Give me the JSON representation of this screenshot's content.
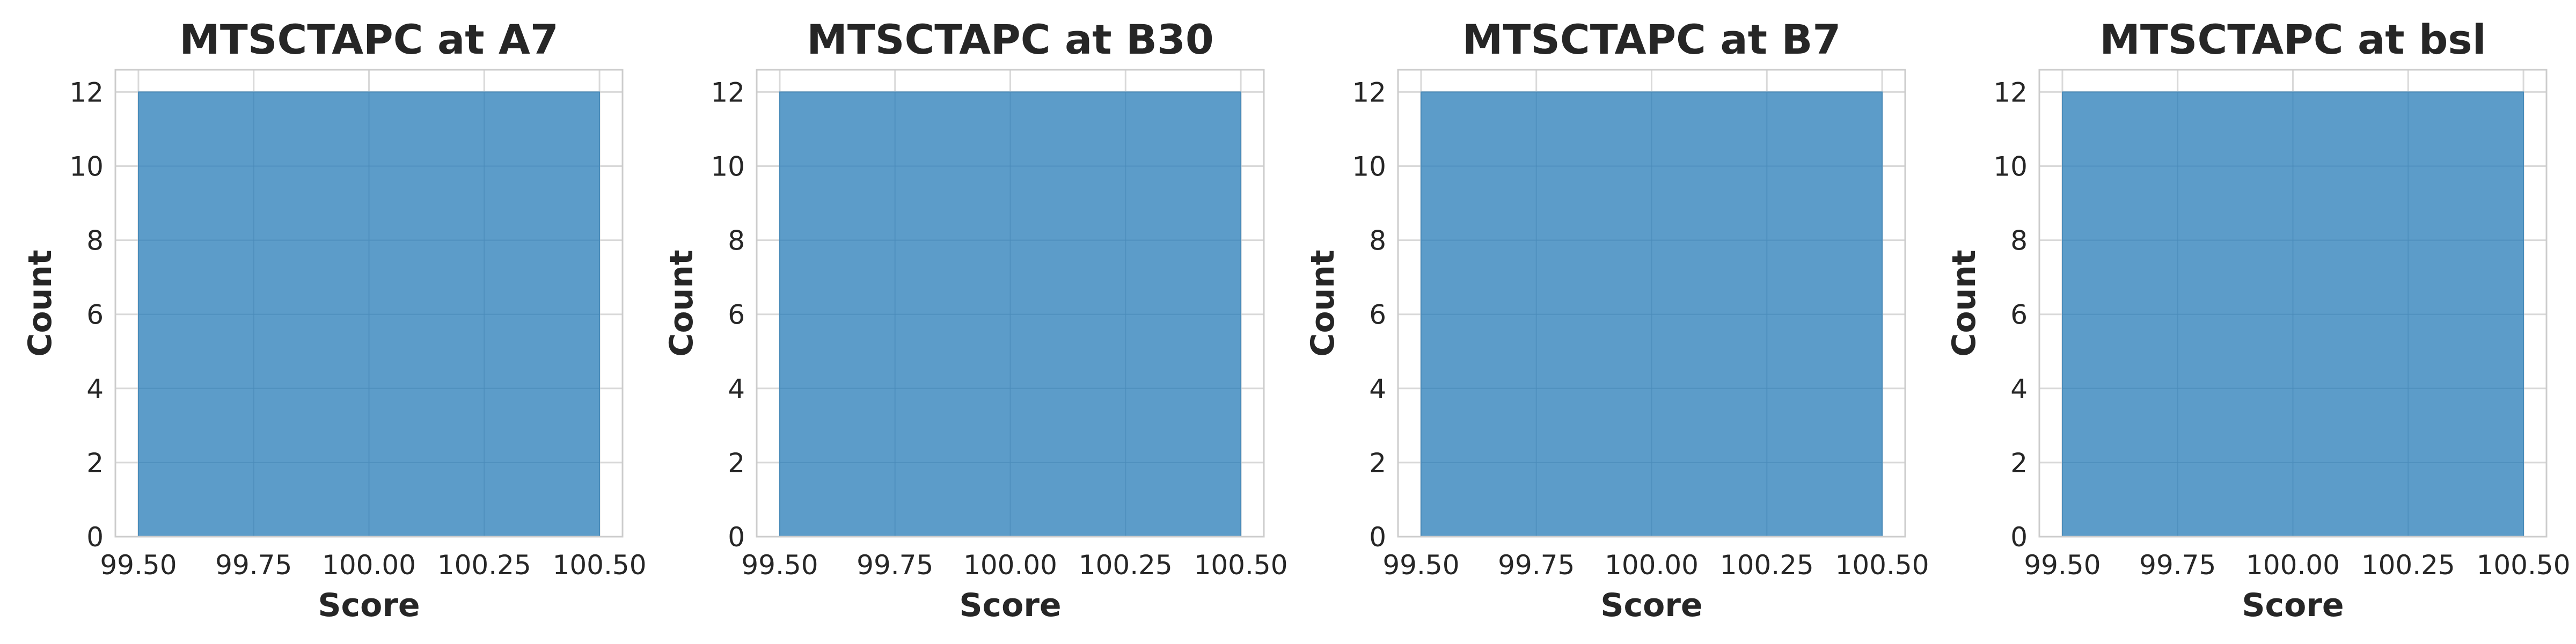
{
  "chart_data": [
    {
      "type": "bar",
      "title": "MTSCTAPC at A7",
      "xlabel": "Score",
      "ylabel": "Count",
      "bins": [
        {
          "x0": 99.5,
          "x1": 100.5,
          "count": 12
        }
      ],
      "xlim": [
        99.45,
        100.55
      ],
      "ylim": [
        0,
        12.6
      ],
      "xticks": [
        99.5,
        99.75,
        100.0,
        100.25,
        100.5
      ],
      "xtick_labels": [
        "99.50",
        "99.75",
        "100.00",
        "100.25",
        "100.50"
      ],
      "yticks": [
        0,
        2,
        4,
        6,
        8,
        10,
        12
      ],
      "ytick_labels": [
        "0",
        "2",
        "4",
        "6",
        "8",
        "10",
        "12"
      ],
      "grid": true
    },
    {
      "type": "bar",
      "title": "MTSCTAPC at B30",
      "xlabel": "Score",
      "ylabel": "Count",
      "bins": [
        {
          "x0": 99.5,
          "x1": 100.5,
          "count": 12
        }
      ],
      "xlim": [
        99.45,
        100.55
      ],
      "ylim": [
        0,
        12.6
      ],
      "xticks": [
        99.5,
        99.75,
        100.0,
        100.25,
        100.5
      ],
      "xtick_labels": [
        "99.50",
        "99.75",
        "100.00",
        "100.25",
        "100.50"
      ],
      "yticks": [
        0,
        2,
        4,
        6,
        8,
        10,
        12
      ],
      "ytick_labels": [
        "0",
        "2",
        "4",
        "6",
        "8",
        "10",
        "12"
      ],
      "grid": true
    },
    {
      "type": "bar",
      "title": "MTSCTAPC at B7",
      "xlabel": "Score",
      "ylabel": "Count",
      "bins": [
        {
          "x0": 99.5,
          "x1": 100.5,
          "count": 12
        }
      ],
      "xlim": [
        99.45,
        100.55
      ],
      "ylim": [
        0,
        12.6
      ],
      "xticks": [
        99.5,
        99.75,
        100.0,
        100.25,
        100.5
      ],
      "xtick_labels": [
        "99.50",
        "99.75",
        "100.00",
        "100.25",
        "100.50"
      ],
      "yticks": [
        0,
        2,
        4,
        6,
        8,
        10,
        12
      ],
      "ytick_labels": [
        "0",
        "2",
        "4",
        "6",
        "8",
        "10",
        "12"
      ],
      "grid": true
    },
    {
      "type": "bar",
      "title": "MTSCTAPC at bsl",
      "xlabel": "Score",
      "ylabel": "Count",
      "bins": [
        {
          "x0": 99.5,
          "x1": 100.5,
          "count": 12
        }
      ],
      "xlim": [
        99.45,
        100.55
      ],
      "ylim": [
        0,
        12.6
      ],
      "xticks": [
        99.5,
        99.75,
        100.0,
        100.25,
        100.5
      ],
      "xtick_labels": [
        "99.50",
        "99.75",
        "100.00",
        "100.25",
        "100.50"
      ],
      "yticks": [
        0,
        2,
        4,
        6,
        8,
        10,
        12
      ],
      "ytick_labels": [
        "0",
        "2",
        "4",
        "6",
        "8",
        "10",
        "12"
      ],
      "grid": true
    }
  ],
  "colors": {
    "bar_fill": "#5799c7",
    "bar_edge": "#4a8bb9",
    "grid": "#d9d9d9",
    "spine": "#cccccc",
    "text": "#262626"
  }
}
